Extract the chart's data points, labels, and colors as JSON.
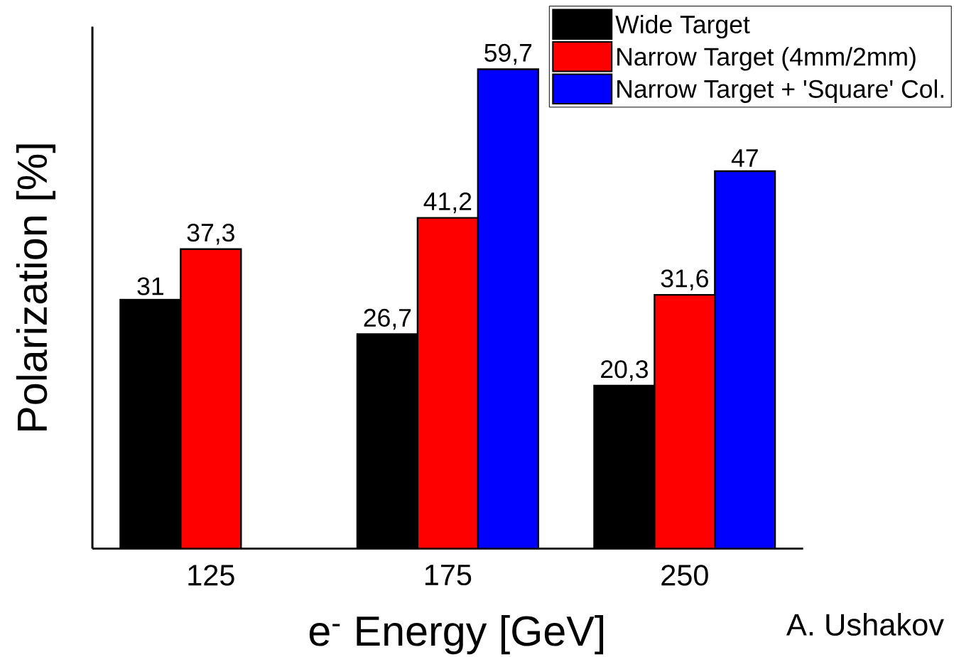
{
  "chart_data": {
    "type": "bar",
    "xlabel": "e$^{-}$ Energy [GeV]",
    "ylabel": "Polarization [%]",
    "categories": [
      "125",
      "175",
      "250"
    ],
    "series": [
      {
        "name": "Wide Target",
        "color": "#000000",
        "values": [
          31,
          26.7,
          20.3
        ],
        "value_labels": [
          "31",
          "26,7",
          "20,3"
        ]
      },
      {
        "name": "Narrow Target (4mm/2mm)",
        "color": "#ff0000",
        "values": [
          37.3,
          41.2,
          31.6
        ],
        "value_labels": [
          "37,3",
          "41,2",
          "31,6"
        ]
      },
      {
        "name": "Narrow Target + 'Square' Col.",
        "color": "#0000ff",
        "values": [
          null,
          59.7,
          47
        ],
        "value_labels": [
          null,
          "59,7",
          "47"
        ]
      }
    ],
    "ylim": [
      0,
      65
    ],
    "tick_labels": "x",
    "legend": "top right",
    "annotations": [
      "A. Ushakov"
    ]
  }
}
